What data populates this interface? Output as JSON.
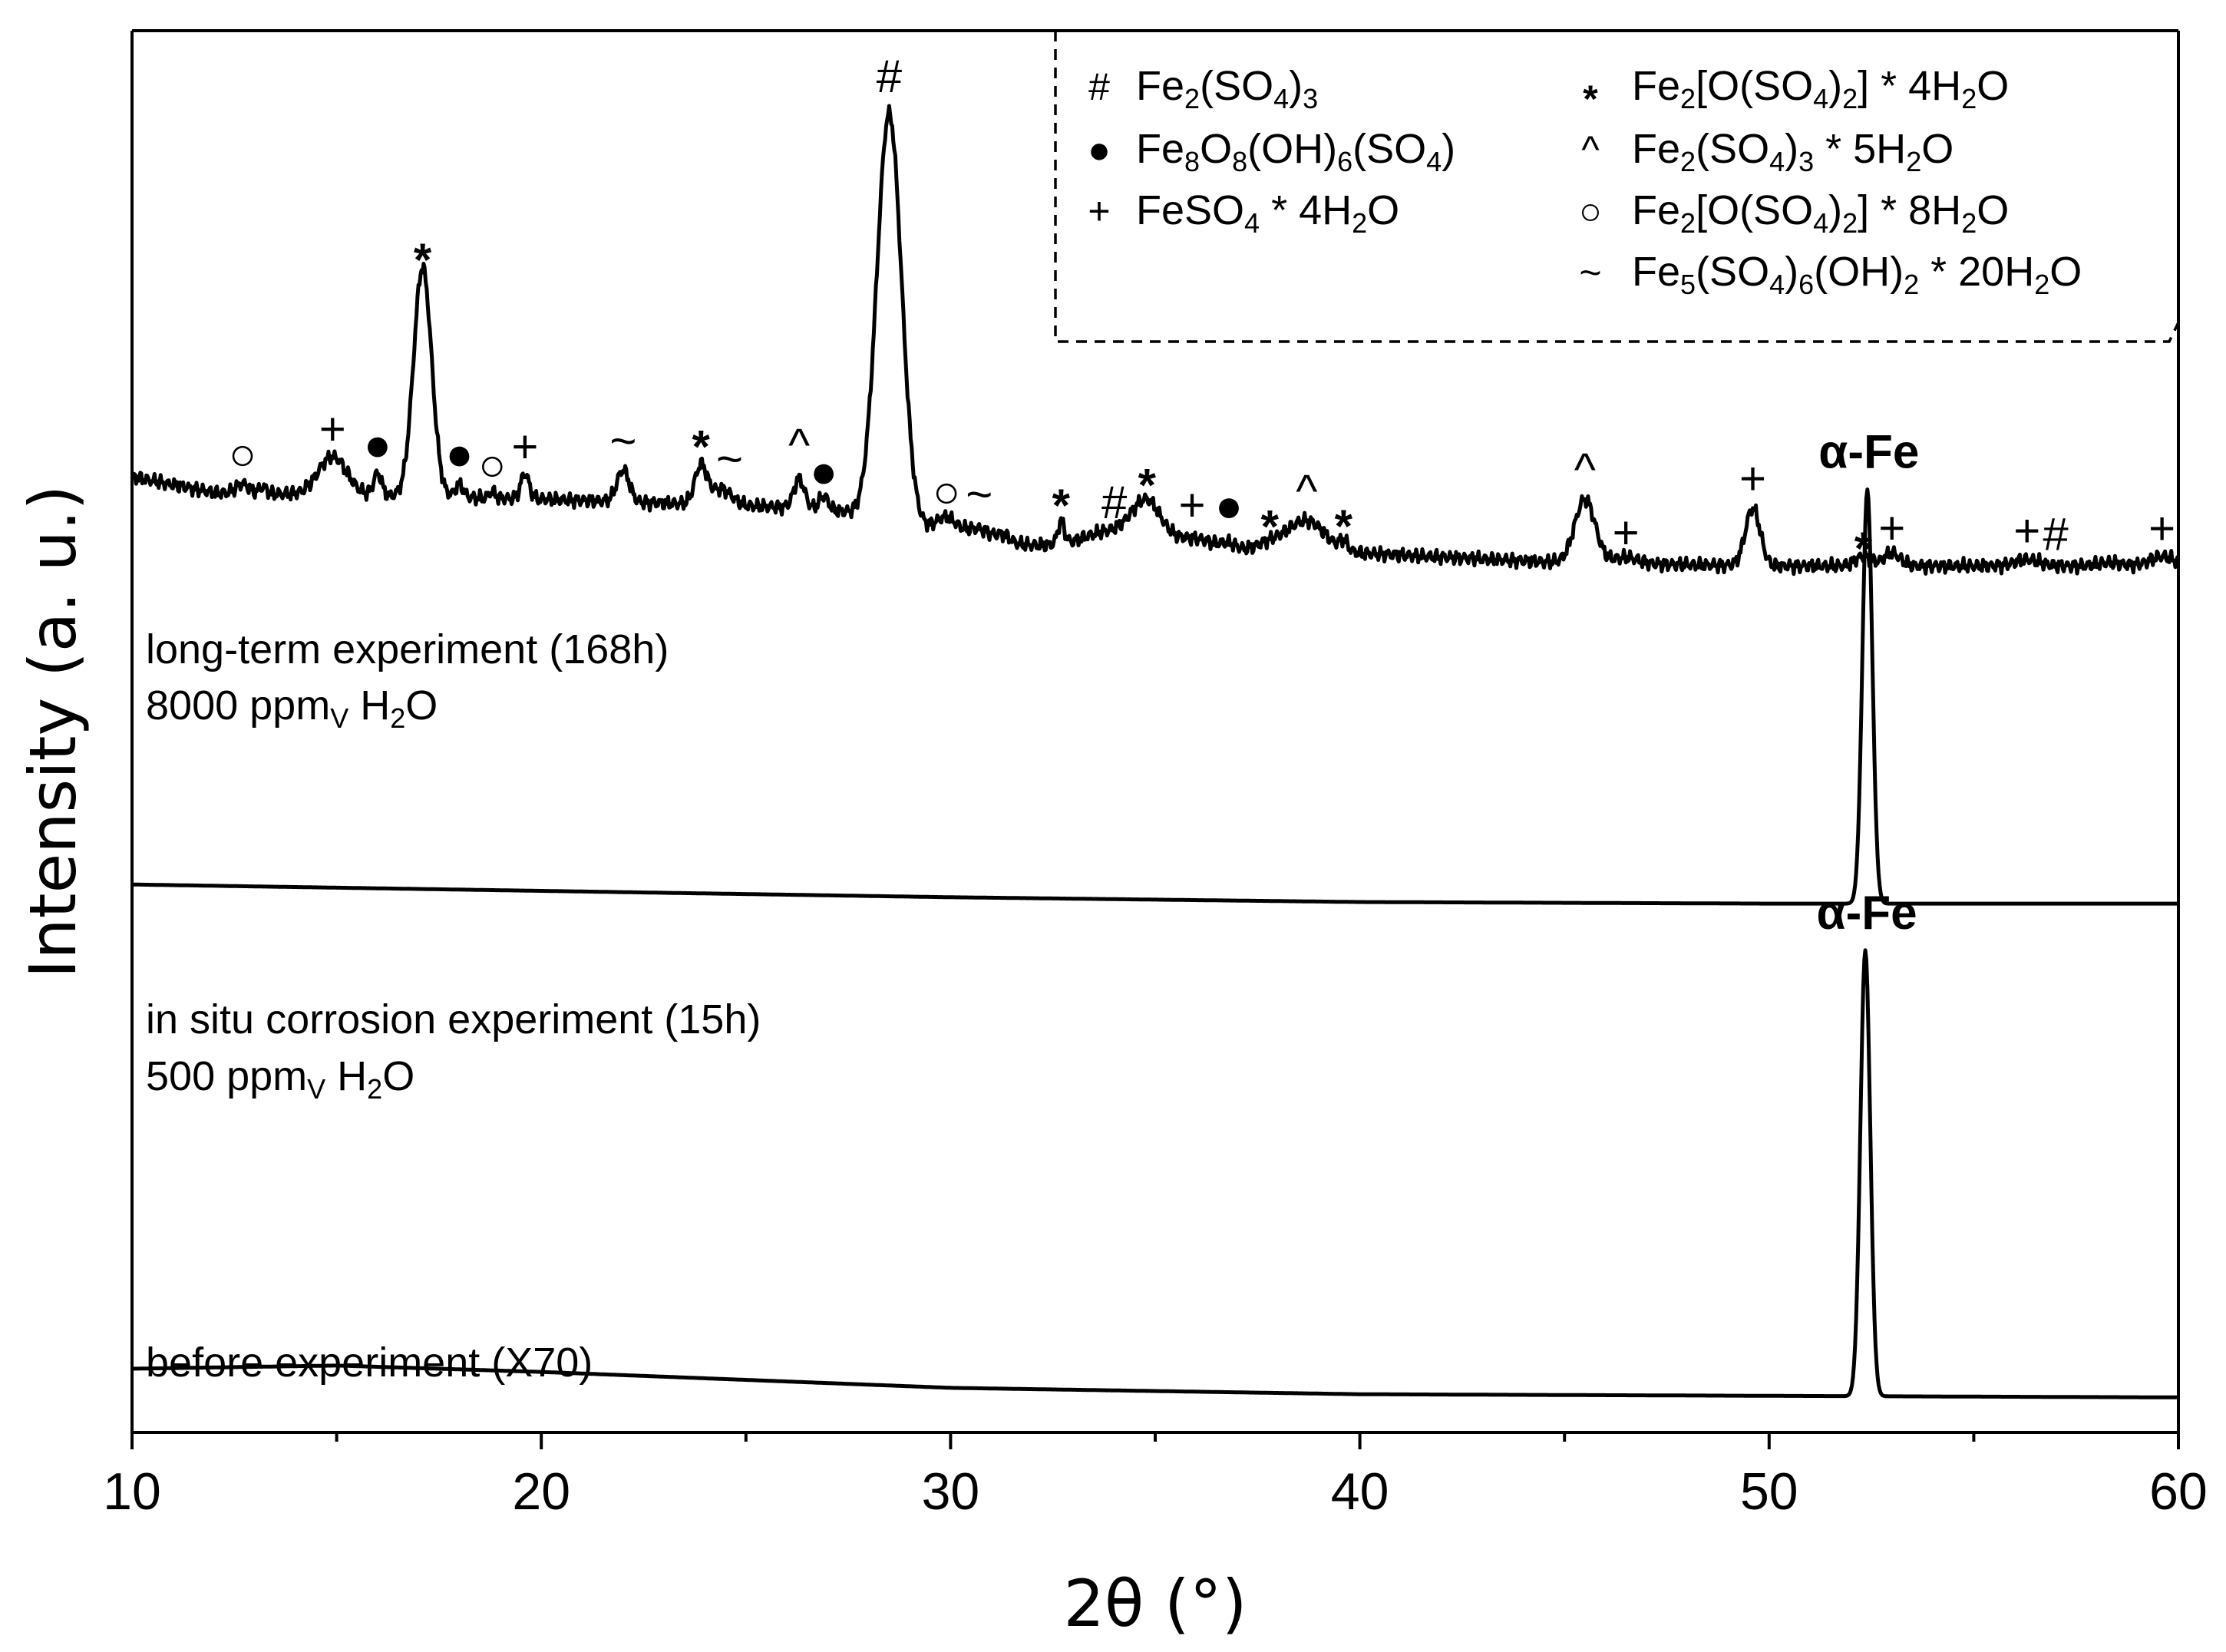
{
  "chart_data": {
    "type": "line",
    "xlabel": "2θ (°)",
    "ylabel": "Intensity (a. u.)",
    "xlim": [
      10,
      60
    ],
    "xticks": [
      10,
      20,
      30,
      40,
      50,
      60
    ],
    "grid": false,
    "series": [
      {
        "id": "long",
        "labels": [
          "long-term experiment (168h)",
          "8000 ppm_V H2O"
        ],
        "label_lines": [
          [
            {
              "t": "long-term experiment (168h)"
            }
          ],
          [
            {
              "t": "8000 ppm"
            },
            {
              "t": "V",
              "sub": true
            },
            {
              "t": " H"
            },
            {
              "t": "2",
              "sub": true
            },
            {
              "t": "O"
            }
          ]
        ],
        "baseline": [
          [
            10,
            3.0
          ],
          [
            12,
            2.95
          ],
          [
            20,
            2.93
          ],
          [
            27,
            2.9
          ],
          [
            30,
            2.82
          ],
          [
            33,
            2.76
          ],
          [
            40,
            2.76
          ],
          [
            45,
            2.73
          ],
          [
            50,
            2.72
          ],
          [
            55,
            2.72
          ],
          [
            60,
            2.72
          ]
        ],
        "peaks": [
          [
            12.7,
            0.03,
            0.15
          ],
          [
            13.2,
            0.02,
            0.1
          ],
          [
            14.9,
            0.12,
            0.35
          ],
          [
            16.0,
            0.07,
            0.1
          ],
          [
            17.1,
            0.72,
            0.22
          ],
          [
            18.0,
            0.04,
            0.1
          ],
          [
            18.8,
            0.02,
            0.08
          ],
          [
            19.6,
            0.08,
            0.1
          ],
          [
            22.0,
            0.1,
            0.15
          ],
          [
            23.9,
            0.12,
            0.15
          ],
          [
            24.4,
            0.05,
            0.25
          ],
          [
            26.3,
            0.09,
            0.13
          ],
          [
            26.9,
            0.04,
            0.1
          ],
          [
            28.5,
            1.28,
            0.3
          ],
          [
            29.9,
            0.05,
            0.25
          ],
          [
            30.7,
            0.03,
            0.3
          ],
          [
            31.3,
            0.02,
            0.15
          ],
          [
            32.7,
            0.07,
            0.08
          ],
          [
            34.0,
            0.07,
            0.9
          ],
          [
            34.8,
            0.12,
            0.35
          ],
          [
            36.0,
            0.04,
            0.5
          ],
          [
            36.8,
            0.02,
            0.2
          ],
          [
            37.8,
            0.03,
            0.4
          ],
          [
            38.7,
            0.1,
            0.45
          ],
          [
            39.6,
            0.03,
            0.1
          ],
          [
            45.5,
            0.2,
            0.25
          ],
          [
            46.5,
            0.02,
            0.3
          ],
          [
            49.6,
            0.18,
            0.18
          ],
          [
            52.3,
            0.03,
            0.2
          ],
          [
            53.0,
            0.04,
            0.2
          ],
          [
            56.3,
            0.02,
            0.3
          ],
          [
            58.3,
            0.01,
            0.3
          ],
          [
            59.6,
            0.03,
            0.3
          ]
        ],
        "markers": [
          {
            "x": 12.7,
            "s": "○"
          },
          {
            "x": 14.9,
            "s": "+"
          },
          {
            "x": 16.0,
            "s": "●"
          },
          {
            "x": 17.1,
            "s": "*"
          },
          {
            "x": 18.0,
            "s": "●"
          },
          {
            "x": 18.8,
            "s": "○"
          },
          {
            "x": 19.6,
            "s": "+"
          },
          {
            "x": 22.0,
            "s": "~"
          },
          {
            "x": 23.9,
            "s": "*"
          },
          {
            "x": 24.6,
            "s": "~"
          },
          {
            "x": 26.3,
            "s": "^"
          },
          {
            "x": 26.9,
            "s": "●"
          },
          {
            "x": 28.5,
            "s": "#"
          },
          {
            "x": 29.9,
            "s": "○"
          },
          {
            "x": 30.7,
            "s": "~"
          },
          {
            "x": 32.7,
            "s": "*"
          },
          {
            "x": 34.0,
            "s": "#"
          },
          {
            "x": 34.8,
            "s": "*"
          },
          {
            "x": 35.9,
            "s": "+"
          },
          {
            "x": 36.8,
            "s": "●"
          },
          {
            "x": 37.8,
            "s": "*"
          },
          {
            "x": 38.7,
            "s": "^"
          },
          {
            "x": 39.6,
            "s": "*"
          },
          {
            "x": 45.5,
            "s": "^"
          },
          {
            "x": 46.5,
            "s": "+"
          },
          {
            "x": 49.6,
            "s": "+"
          },
          {
            "x": 52.3,
            "s": "*"
          },
          {
            "x": 53.0,
            "s": "+"
          },
          {
            "x": 56.3,
            "s": "+"
          },
          {
            "x": 57.0,
            "s": "#"
          },
          {
            "x": 59.6,
            "s": "+"
          }
        ]
      },
      {
        "id": "insitu",
        "labels": [
          "in situ corrosion experiment (15h)",
          "500 ppm_V H2O"
        ],
        "label_lines": [
          [
            {
              "t": "in situ corrosion experiment (15h)"
            }
          ],
          [
            {
              "t": "500 ppm"
            },
            {
              "t": "V",
              "sub": true
            },
            {
              "t": " H"
            },
            {
              "t": "2",
              "sub": true
            },
            {
              "t": "O"
            }
          ]
        ],
        "baseline": [
          [
            10,
            1.72
          ],
          [
            20,
            1.7
          ],
          [
            30,
            1.68
          ],
          [
            40,
            1.665
          ],
          [
            50,
            1.66
          ],
          [
            60,
            1.66
          ]
        ],
        "peaks": [
          [
            52.4,
            1.3,
            0.12
          ]
        ],
        "annotation": {
          "x": 52.4,
          "text": "α-Fe"
        }
      },
      {
        "id": "before",
        "labels": [
          "before experiment (X70)"
        ],
        "label_lines": [
          [
            {
              "t": "before experiment (X70)"
            }
          ]
        ],
        "baseline": [
          [
            10,
            0.2
          ],
          [
            15,
            0.21
          ],
          [
            20,
            0.19
          ],
          [
            30,
            0.14
          ],
          [
            40,
            0.12
          ],
          [
            50,
            0.115
          ],
          [
            60,
            0.11
          ]
        ],
        "peaks": [
          [
            52.35,
            1.4,
            0.12
          ]
        ],
        "annotation": {
          "x": 52.35,
          "text": "α-Fe"
        }
      }
    ],
    "legend": {
      "placement": "top-right",
      "border": "dashed",
      "items": [
        {
          "symbol": "#",
          "label": "Fe2(SO4)3",
          "parts": [
            {
              "t": "Fe"
            },
            {
              "t": "2",
              "sub": true
            },
            {
              "t": "(SO"
            },
            {
              "t": "4",
              "sub": true
            },
            {
              "t": ")"
            },
            {
              "t": "3",
              "sub": true
            }
          ]
        },
        {
          "symbol": "●",
          "label": "Fe8O8(OH)6(SO4)",
          "parts": [
            {
              "t": "Fe"
            },
            {
              "t": "8",
              "sub": true
            },
            {
              "t": "O"
            },
            {
              "t": "8",
              "sub": true
            },
            {
              "t": "(OH)"
            },
            {
              "t": "6",
              "sub": true
            },
            {
              "t": "(SO"
            },
            {
              "t": "4",
              "sub": true
            },
            {
              "t": ")"
            }
          ]
        },
        {
          "symbol": "+",
          "label": "FeSO4 * 4H2O",
          "parts": [
            {
              "t": "FeSO"
            },
            {
              "t": "4",
              "sub": true
            },
            {
              "t": " * 4H"
            },
            {
              "t": "2",
              "sub": true
            },
            {
              "t": "O"
            }
          ]
        },
        {
          "symbol": "*",
          "label": "Fe2[O(SO4)2] * 4H2O",
          "parts": [
            {
              "t": "Fe"
            },
            {
              "t": "2",
              "sub": true
            },
            {
              "t": "[O(SO"
            },
            {
              "t": "4",
              "sub": true
            },
            {
              "t": ")"
            },
            {
              "t": "2",
              "sub": true
            },
            {
              "t": "] * 4H"
            },
            {
              "t": "2",
              "sub": true
            },
            {
              "t": "O"
            }
          ]
        },
        {
          "symbol": "^",
          "label": "Fe2(SO4)3 * 5H2O",
          "parts": [
            {
              "t": "Fe"
            },
            {
              "t": "2",
              "sub": true
            },
            {
              "t": "(SO"
            },
            {
              "t": "4",
              "sub": true
            },
            {
              "t": ")"
            },
            {
              "t": "3",
              "sub": true
            },
            {
              "t": " * 5H"
            },
            {
              "t": "2",
              "sub": true
            },
            {
              "t": "O"
            }
          ]
        },
        {
          "symbol": "○",
          "label": "Fe2[O(SO4)2] * 8H2O",
          "parts": [
            {
              "t": "Fe"
            },
            {
              "t": "2",
              "sub": true
            },
            {
              "t": "[O(SO"
            },
            {
              "t": "4",
              "sub": true
            },
            {
              "t": ")"
            },
            {
              "t": "2",
              "sub": true
            },
            {
              "t": "] * 8H"
            },
            {
              "t": "2",
              "sub": true
            },
            {
              "t": "O"
            }
          ]
        },
        {
          "symbol": "~",
          "label": "Fe5(SO4)6(OH)2 * 20H2O",
          "parts": [
            {
              "t": "Fe"
            },
            {
              "t": "5",
              "sub": true
            },
            {
              "t": "(SO"
            },
            {
              "t": "4",
              "sub": true
            },
            {
              "t": ")"
            },
            {
              "t": "6",
              "sub": true
            },
            {
              "t": "(OH)"
            },
            {
              "t": "2",
              "sub": true
            },
            {
              "t": " * 20H"
            },
            {
              "t": "2",
              "sub": true
            },
            {
              "t": "O"
            }
          ]
        }
      ]
    }
  }
}
